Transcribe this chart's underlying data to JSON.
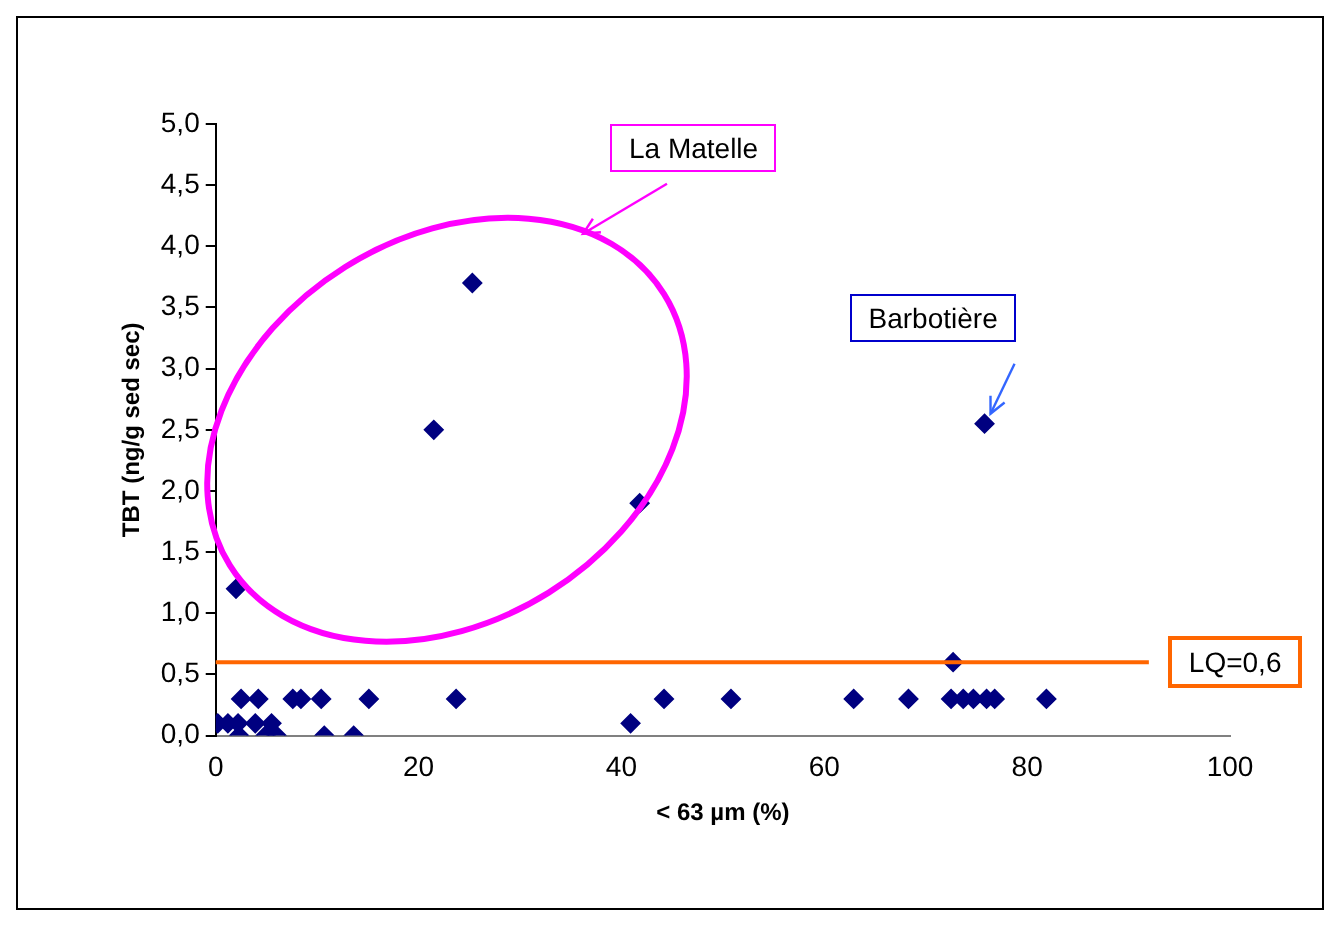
{
  "chart_data": {
    "type": "scatter",
    "xlabel": "< 63 µm (%)",
    "ylabel": "TBT (ng/g sed sec)",
    "series": [
      {
        "color": "#000080",
        "x": [
          2,
          21.5,
          25.3,
          41.8,
          75.8,
          2.5,
          4.2,
          7.6,
          8.4,
          10.4,
          15.1,
          23.7,
          44.2,
          50.8,
          62.9,
          68.3,
          72.5,
          73.7,
          74.7,
          76.0,
          76.8,
          81.9,
          72.7,
          0.2,
          1.2,
          2.2,
          3.9,
          5.5,
          40.9,
          2.3,
          4.9,
          6.0,
          10.7,
          13.6
        ],
        "values": [
          1.2,
          2.5,
          3.7,
          1.9,
          2.55,
          0.3,
          0.3,
          0.3,
          0.3,
          0.3,
          0.3,
          0.3,
          0.3,
          0.3,
          0.3,
          0.3,
          0.3,
          0.3,
          0.3,
          0.3,
          0.3,
          0.3,
          0.6,
          0.1,
          0.1,
          0.1,
          0.1,
          0.1,
          0.1,
          0,
          0,
          0,
          0,
          0
        ]
      }
    ],
    "xlim": [
      0,
      100
    ],
    "xticks": [
      0,
      20,
      40,
      60,
      80,
      100
    ],
    "ylim": [
      0,
      5
    ],
    "yticks": [
      {
        "value": 0,
        "label": "0,0"
      },
      {
        "value": 0.5,
        "label": "0,5"
      },
      {
        "value": 1,
        "label": "1,0"
      },
      {
        "value": 1.5,
        "label": "1,5"
      },
      {
        "value": 2,
        "label": "2,0"
      },
      {
        "value": 2.5,
        "label": "2,5"
      },
      {
        "value": 3,
        "label": "3,0"
      },
      {
        "value": 3.5,
        "label": "3,5"
      },
      {
        "value": 4,
        "label": "4,0"
      },
      {
        "value": 4.5,
        "label": "4,5"
      },
      {
        "value": 5,
        "label": "5,0"
      }
    ],
    "ref_lines": [
      {
        "axis": "y",
        "value": 0.6,
        "label": "LQ=0,6",
        "color": "#ff6600"
      }
    ],
    "annotations": [
      "La Matelle",
      {
        "text": "Barbotière",
        "x": 75.8,
        "y": 2.55
      }
    ],
    "marker": "diamond",
    "grid": false,
    "legend": false
  }
}
